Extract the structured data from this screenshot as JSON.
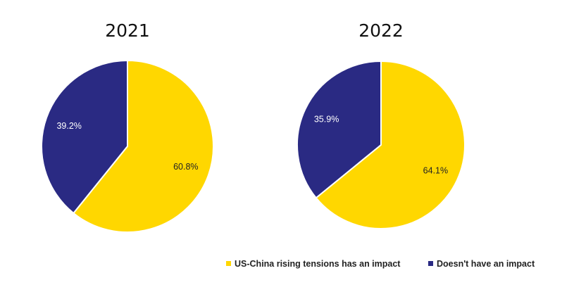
{
  "chart_data": [
    {
      "type": "pie",
      "title": "2021",
      "categories": [
        "US-China rising tensions has an impact",
        "Doesn't have an impact"
      ],
      "values": [
        60.8,
        39.2
      ],
      "data_labels": [
        "60.8%",
        "39.2%"
      ],
      "colors": [
        "#FFD700",
        "#2A2A83"
      ]
    },
    {
      "type": "pie",
      "title": "2022",
      "categories": [
        "US-China rising tensions has an impact",
        "Doesn't have an impact"
      ],
      "values": [
        64.1,
        35.9
      ],
      "data_labels": [
        "64.1%",
        "35.9%"
      ],
      "colors": [
        "#FFD700",
        "#2A2A83"
      ]
    }
  ],
  "legend": {
    "placement": "bottom-right",
    "items": [
      {
        "label": "US-China rising tensions has an impact",
        "color": "#FFD700"
      },
      {
        "label": "Doesn't have an impact",
        "color": "#2A2A83"
      }
    ]
  }
}
